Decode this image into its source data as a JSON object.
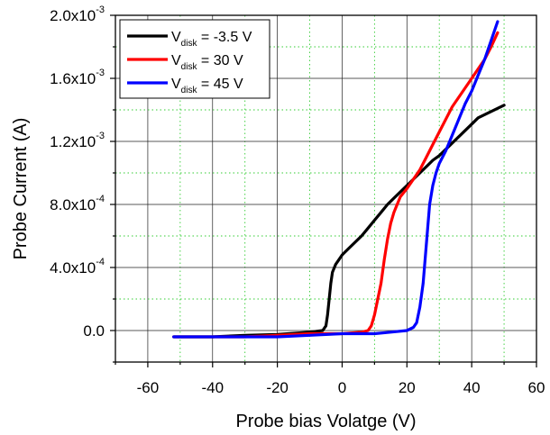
{
  "chart_data": {
    "type": "line",
    "title": "",
    "xlabel": "Probe bias Volatge (V)",
    "ylabel": "Probe Current (A)",
    "xlim": [
      -70,
      60
    ],
    "ylim": [
      -0.0002,
      0.002
    ],
    "grid": true,
    "legend_position": "top-left",
    "x_ticks": [
      {
        "value": -60,
        "label": "-60"
      },
      {
        "value": -40,
        "label": "-40"
      },
      {
        "value": -20,
        "label": "-20"
      },
      {
        "value": 0,
        "label": "0"
      },
      {
        "value": 20,
        "label": "20"
      },
      {
        "value": 40,
        "label": "40"
      },
      {
        "value": 60,
        "label": "60"
      }
    ],
    "y_ticks": [
      {
        "value": 0,
        "mant": "0.0",
        "exp": ""
      },
      {
        "value": 0.0004,
        "mant": "4.0x10",
        "exp": "-4"
      },
      {
        "value": 0.0008,
        "mant": "8.0x10",
        "exp": "-4"
      },
      {
        "value": 0.0012,
        "mant": "1.2x10",
        "exp": "-3"
      },
      {
        "value": 0.0016,
        "mant": "1.6x10",
        "exp": "-3"
      },
      {
        "value": 0.002,
        "mant": "2.0x10",
        "exp": "-3"
      }
    ],
    "series": [
      {
        "label_main": "V",
        "label_sub": "disk",
        "label_rest": " = -3.5 V",
        "color": "#000000",
        "x": [
          -52,
          -40,
          -30,
          -20,
          -10,
          -6,
          -5,
          -4.5,
          -4,
          -3.5,
          -3,
          -2,
          -1,
          0,
          2,
          4,
          6,
          8,
          10,
          12,
          14,
          16,
          18,
          20,
          22,
          24,
          26,
          28,
          30,
          32,
          34,
          36,
          38,
          40,
          42,
          44,
          46,
          48,
          50
        ],
        "y": [
          -4e-05,
          -4e-05,
          -3e-05,
          -2.5e-05,
          -1e-05,
          0.0,
          3e-05,
          0.0001,
          0.0002,
          0.0003,
          0.00037,
          0.00042,
          0.00045,
          0.00048,
          0.00052,
          0.00056,
          0.0006,
          0.00065,
          0.0007,
          0.00075,
          0.0008,
          0.00084,
          0.00088,
          0.00092,
          0.00096,
          0.001,
          0.00104,
          0.00108,
          0.00111,
          0.00115,
          0.00119,
          0.00123,
          0.00127,
          0.00131,
          0.00135,
          0.00137,
          0.00139,
          0.00141,
          0.00143
        ]
      },
      {
        "label_main": "V",
        "label_sub": "disk",
        "label_rest": " = 30 V",
        "color": "#ff0000",
        "x": [
          -52,
          -40,
          -30,
          -20,
          -10,
          0,
          6,
          8,
          9,
          10,
          11,
          12,
          13,
          14,
          15,
          16,
          17,
          18,
          20,
          22,
          24,
          26,
          28,
          30,
          32,
          34,
          36,
          38,
          40,
          42,
          44,
          46,
          48
        ],
        "y": [
          -4e-05,
          -4e-05,
          -4e-05,
          -3e-05,
          -2e-05,
          -2e-05,
          -1e-05,
          0.0,
          3e-05,
          0.0001,
          0.0002,
          0.0003,
          0.00045,
          0.00058,
          0.00068,
          0.00075,
          0.0008,
          0.00085,
          0.0009,
          0.00096,
          0.00102,
          0.0011,
          0.00118,
          0.00126,
          0.00134,
          0.00142,
          0.00148,
          0.00154,
          0.0016,
          0.00166,
          0.00172,
          0.0018,
          0.00189
        ]
      },
      {
        "label_main": "V",
        "label_sub": "disk",
        "label_rest": " = 45 V",
        "color": "#0000ff",
        "x": [
          -52,
          -40,
          -30,
          -20,
          -10,
          0,
          10,
          15,
          20,
          22,
          23,
          24,
          25,
          26,
          27,
          28,
          29,
          30,
          32,
          34,
          36,
          38,
          40,
          42,
          44,
          46,
          48
        ],
        "y": [
          -4e-05,
          -4e-05,
          -4e-05,
          -4e-05,
          -3e-05,
          -2e-05,
          -2e-05,
          -1e-05,
          0.0,
          2e-05,
          5e-05,
          0.00015,
          0.0003,
          0.00055,
          0.0008,
          0.00092,
          0.001,
          0.00106,
          0.00114,
          0.00124,
          0.00134,
          0.00144,
          0.00152,
          0.00162,
          0.00172,
          0.00184,
          0.00196
        ]
      }
    ]
  }
}
